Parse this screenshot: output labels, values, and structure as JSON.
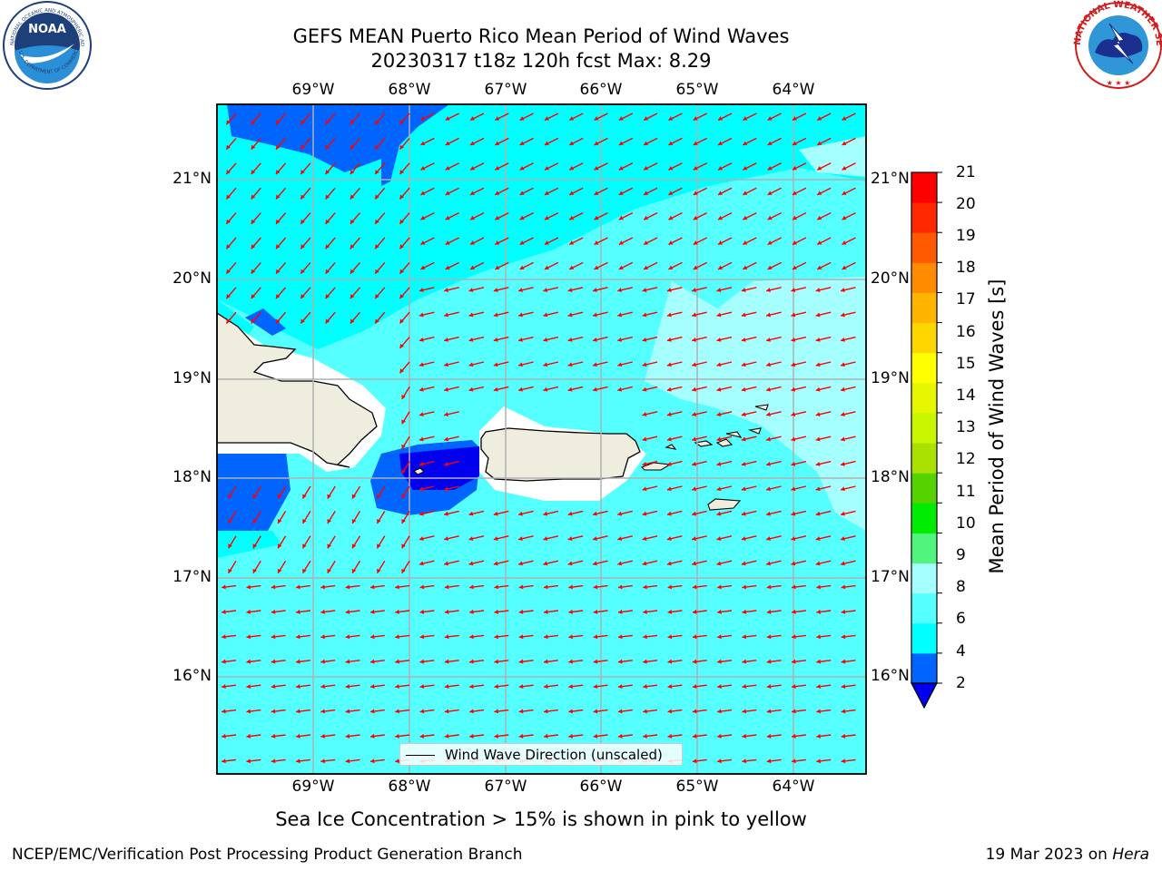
{
  "title": {
    "line1": "GEFS MEAN Puerto Rico Mean Period of Wind Waves",
    "line2": "20230317 t18z 120h fcst   Max: 8.29"
  },
  "axes": {
    "lon_ticks": [
      "69°W",
      "68°W",
      "67°W",
      "66°W",
      "65°W",
      "64°W"
    ],
    "lat_ticks": [
      "21°N",
      "20°N",
      "19°N",
      "18°N",
      "17°N",
      "16°N"
    ],
    "lon_range": [
      -70.0,
      -63.25
    ],
    "lat_range": [
      15.0,
      21.75
    ],
    "gridlines": true
  },
  "colorbar": {
    "label": "Mean Period of Wind Waves [s]",
    "ticks": [
      "2",
      "4",
      "6",
      "8",
      "9",
      "10",
      "11",
      "12",
      "13",
      "14",
      "15",
      "16",
      "17",
      "18",
      "19",
      "20",
      "21"
    ],
    "colors": [
      "#0064ff",
      "#00ffff",
      "#55ffff",
      "#a6ffff",
      "#50f57d",
      "#00ec00",
      "#55d200",
      "#aae100",
      "#c8f500",
      "#e6f500",
      "#ffff00",
      "#ffd700",
      "#ffb400",
      "#ff8c00",
      "#ff5a00",
      "#ff2800",
      "#ff0000"
    ],
    "extend_low_color": "#0000ee"
  },
  "legend": {
    "label": "Wind Wave Direction (unscaled)"
  },
  "map": {
    "region": "Puerto Rico",
    "field_colors": {
      "land": "#efedde",
      "coast": "#000000",
      "nodata": "#ffffff",
      "arrow": "#ff0000"
    }
  },
  "footer": {
    "sea_ice_note": "Sea Ice Concentration > 15% is shown in pink to yellow",
    "credit": "NCEP/EMC/Verification Post Processing Product Generation Branch",
    "date": "19 Mar 2023 on",
    "machine": "Hera"
  },
  "logos": {
    "left": {
      "text": "NOAA",
      "ring_text": "NATIONAL OCEANIC AND ATMOSPHERIC ADMINISTRATION · U.S. DEPARTMENT OF COMMERCE"
    },
    "right": {
      "ring_text": "NATIONAL WEATHER SERVICE"
    }
  }
}
